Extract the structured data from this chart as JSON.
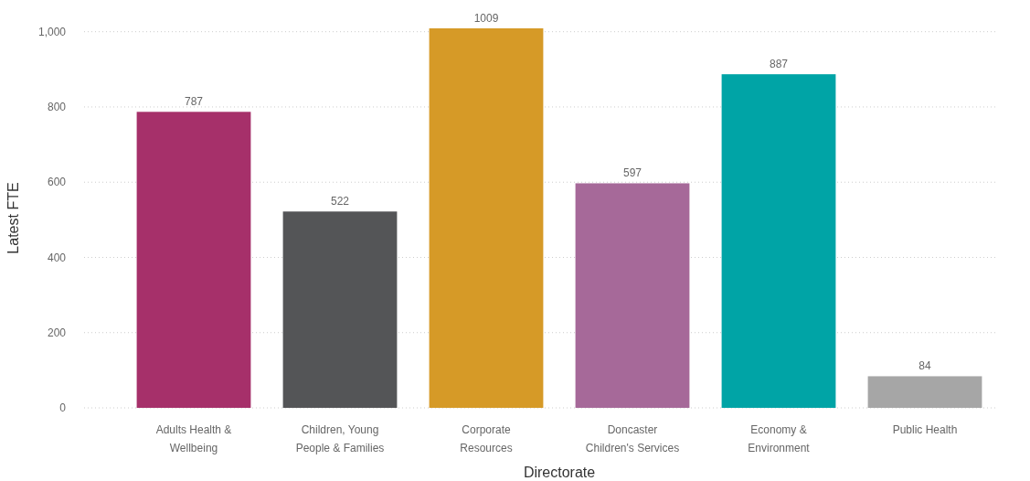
{
  "chart_data": {
    "type": "bar",
    "xlabel": "Directorate",
    "ylabel": "Latest FTE",
    "categories": [
      "Adults Health & Wellbeing",
      "Children, Young People & Families",
      "Corporate Resources",
      "Doncaster Children's Services",
      "Economy & Environment",
      "Public Health"
    ],
    "values": [
      787,
      522,
      1009,
      597,
      887,
      84
    ],
    "colors": [
      "#a6306a",
      "#545557",
      "#d69a27",
      "#a66999",
      "#00a4a6",
      "#a6a6a6"
    ],
    "ylim": [
      0,
      1009
    ],
    "yticks": [
      0,
      200,
      400,
      600,
      800,
      {
        "value": 1000,
        "label": "1,000"
      }
    ],
    "grid": "y",
    "data_labels": true
  }
}
